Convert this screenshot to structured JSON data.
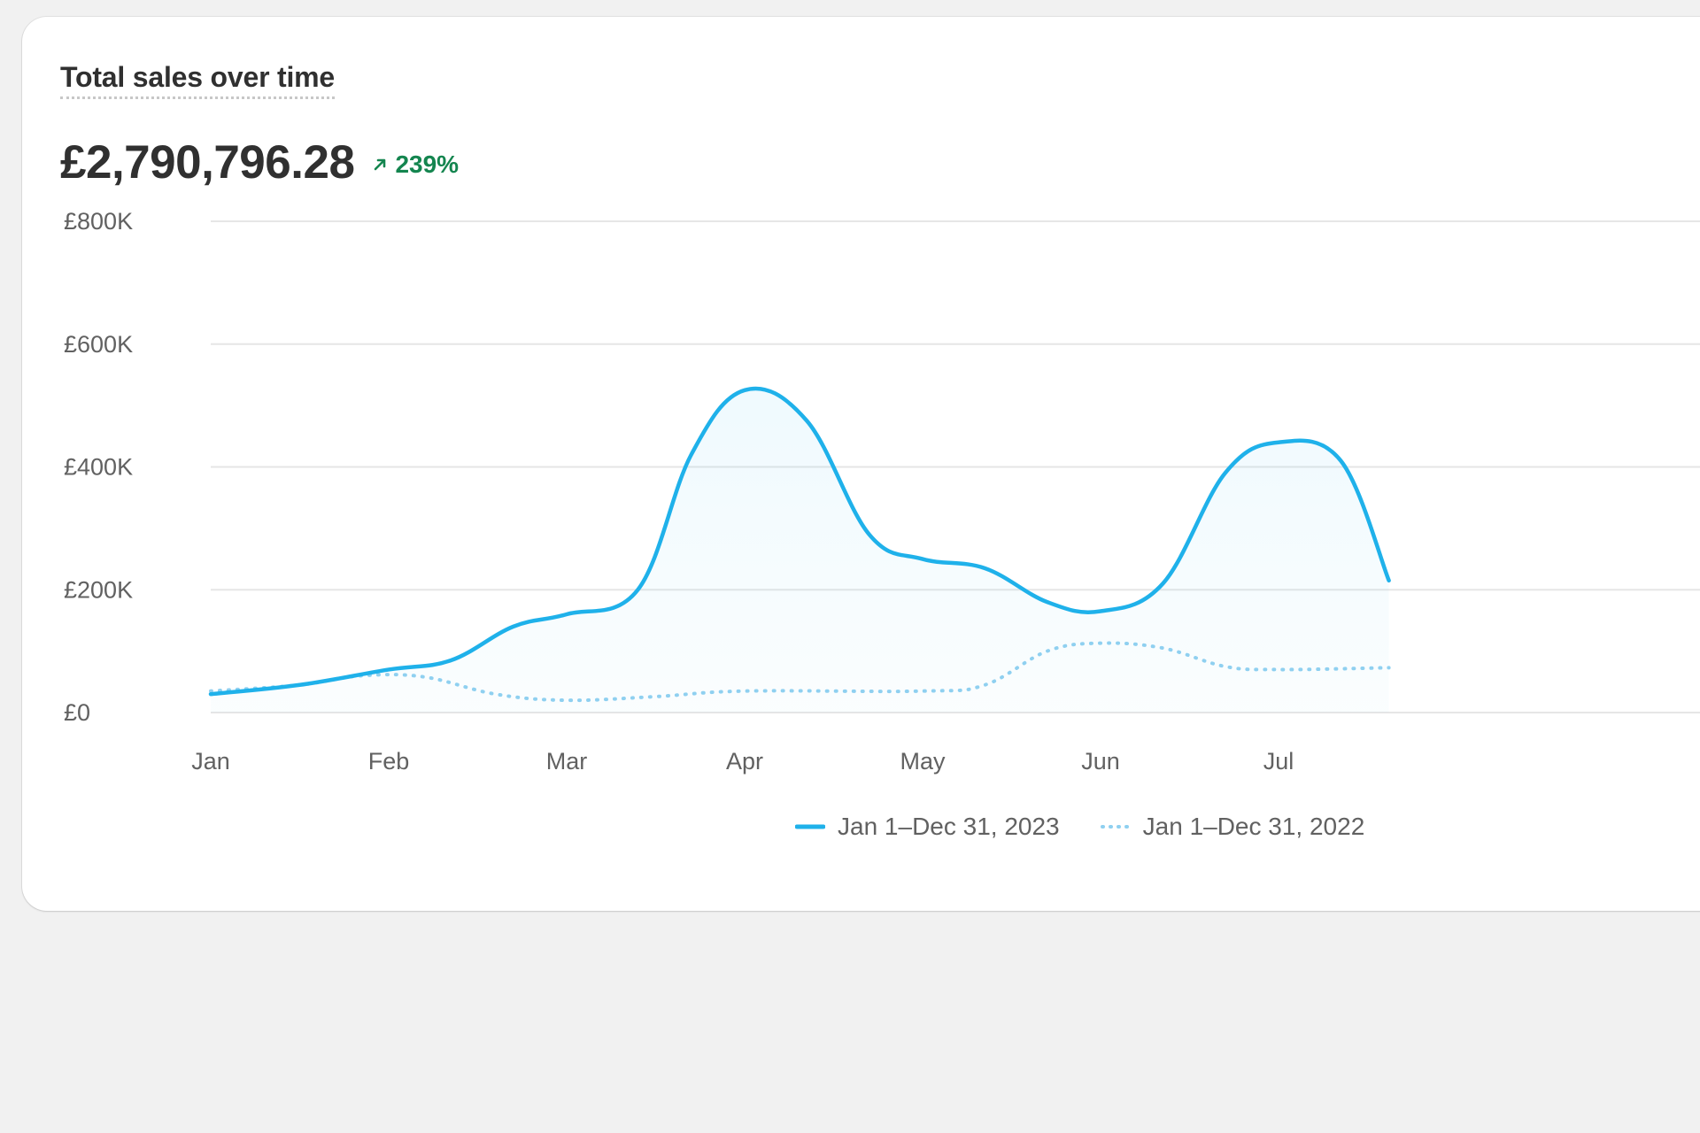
{
  "header": {
    "title": "Total sales over time",
    "total": "£2,790,796.28",
    "change": "239%",
    "change_icon": "arrow-up-right-icon",
    "change_color": "#14854f"
  },
  "colors": {
    "current": "#1fb1ea",
    "previous": "#8fd0f0",
    "grid": "#e6e6e6"
  },
  "legend": [
    {
      "label": "Jan 1–Dec 31, 2023",
      "style": "solid"
    },
    {
      "label": "Jan 1–Dec 31, 2022",
      "style": "dotted"
    }
  ],
  "chart_data": {
    "type": "area",
    "title": "Total sales over time",
    "categories": [
      "Jan",
      "Feb",
      "Mar",
      "Apr",
      "May",
      "Jun",
      "Jul"
    ],
    "y_ticks": [
      "£0",
      "£200K",
      "£400K",
      "£600K",
      "£800K"
    ],
    "ylim": [
      0,
      800000
    ],
    "grid": true,
    "legend_position": "bottom-right",
    "series": [
      {
        "name": "Jan 1–Dec 31, 2023",
        "style": "solid",
        "points": [
          [
            "Jan",
            30000
          ],
          [
            0.5,
            45000
          ],
          [
            "Feb",
            70000
          ],
          [
            1.35,
            85000
          ],
          [
            1.7,
            140000
          ],
          [
            "Mar",
            160000
          ],
          [
            2.4,
            200000
          ],
          [
            2.7,
            420000
          ],
          [
            "Apr",
            525000
          ],
          [
            3.35,
            475000
          ],
          [
            3.7,
            290000
          ],
          [
            "May",
            250000
          ],
          [
            4.35,
            235000
          ],
          [
            4.7,
            180000
          ],
          [
            "Jun",
            165000
          ],
          [
            5.35,
            210000
          ],
          [
            5.7,
            390000
          ],
          [
            "Jul",
            440000
          ],
          [
            6.35,
            410000
          ],
          [
            6.62,
            215000
          ]
        ]
      },
      {
        "name": "Jan 1–Dec 31, 2022",
        "style": "dotted",
        "points": [
          [
            "Jan",
            35000
          ],
          [
            0.5,
            45000
          ],
          [
            0.85,
            60000
          ],
          [
            1.2,
            58000
          ],
          [
            1.6,
            30000
          ],
          [
            "Mar",
            20000
          ],
          [
            2.5,
            26000
          ],
          [
            3.0,
            35000
          ],
          [
            "May",
            35000
          ],
          [
            4.35,
            45000
          ],
          [
            4.7,
            100000
          ],
          [
            5.0,
            113000
          ],
          [
            5.35,
            105000
          ],
          [
            5.7,
            75000
          ],
          [
            6.0,
            70000
          ],
          [
            6.62,
            73000
          ]
        ]
      }
    ]
  }
}
